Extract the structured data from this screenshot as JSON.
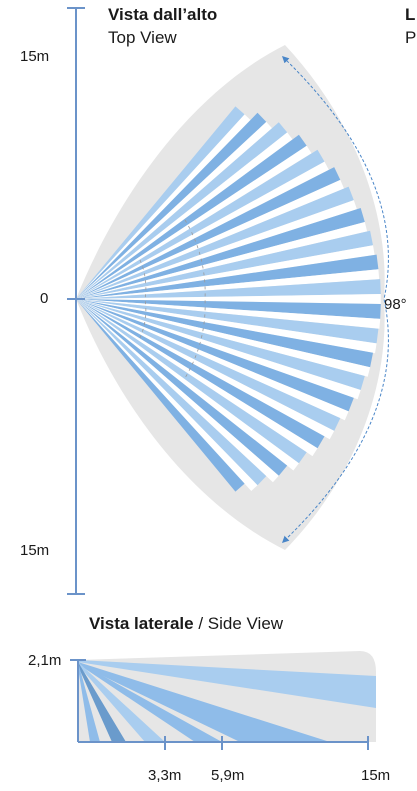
{
  "top_view": {
    "title_it": "Vista dall’alto",
    "title_en": "Top View",
    "label_top": "15m",
    "label_center": "0",
    "label_bottom": "15m",
    "angle_label": "98°",
    "beam_count": 22,
    "beam_color_light": "#a9cdef",
    "beam_color_dark": "#7fb1e3"
  },
  "side_view": {
    "title_it": "Vista laterale",
    "separator": " / ",
    "title_en": "Side View",
    "height_label": "2,1m",
    "distance_labels": [
      "3,3m",
      "5,9m",
      "15m"
    ]
  },
  "cut_off_header": {
    "line1": "L",
    "line2": "P"
  },
  "colors": {
    "axis": "#6b93c9",
    "zone_gray": "#e6e6e6",
    "beam_blue": "#8fbce9",
    "beam_dark": "#6a9bcc",
    "arc_arrow": "#4a86c8"
  }
}
